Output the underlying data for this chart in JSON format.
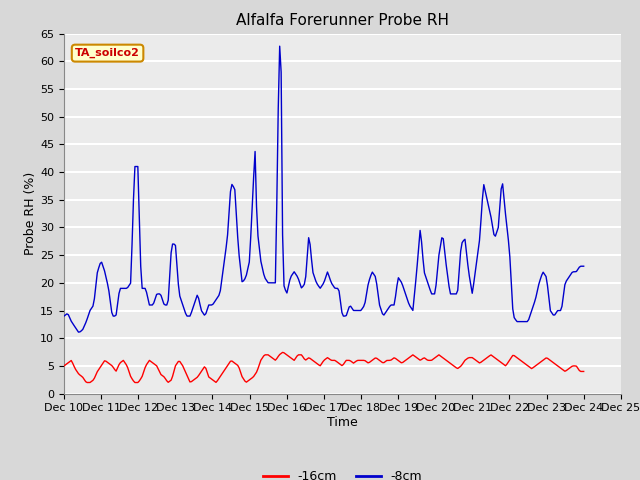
{
  "title": "Alfalfa Forerunner Probe RH",
  "xlabel": "Time",
  "ylabel": "Probe RH (%)",
  "ylim": [
    0,
    65
  ],
  "yticks": [
    0,
    5,
    10,
    15,
    20,
    25,
    30,
    35,
    40,
    45,
    50,
    55,
    60,
    65
  ],
  "x_labels": [
    "Dec 10",
    "Dec 11",
    "Dec 12",
    "Dec 13",
    "Dec 14",
    "Dec 15",
    "Dec 16",
    "Dec 17",
    "Dec 18",
    "Dec 19",
    "Dec 20",
    "Dec 21",
    "Dec 22",
    "Dec 23",
    "Dec 24",
    "Dec 25"
  ],
  "bg_color": "#d8d8d8",
  "plot_bg_color": "#ebebeb",
  "grid_color": "#ffffff",
  "annotation_text": "TA_soilco2",
  "annotation_bg": "#ffffcc",
  "annotation_border": "#cc8800",
  "annotation_text_color": "#cc0000",
  "legend_label_red": "-16cm",
  "legend_label_blue": "-8cm",
  "red_color": "#ff0000",
  "blue_color": "#0000cc",
  "title_fontsize": 11,
  "axis_label_fontsize": 9,
  "tick_fontsize": 8,
  "blue_keypoints": [
    [
      0,
      14
    ],
    [
      0.1,
      14.5
    ],
    [
      0.2,
      13
    ],
    [
      0.3,
      12
    ],
    [
      0.4,
      11
    ],
    [
      0.5,
      11.5
    ],
    [
      0.6,
      13
    ],
    [
      0.7,
      15
    ],
    [
      0.8,
      16
    ],
    [
      0.9,
      22
    ],
    [
      1.0,
      24
    ],
    [
      1.1,
      22
    ],
    [
      1.2,
      19
    ],
    [
      1.3,
      14
    ],
    [
      1.4,
      14
    ],
    [
      1.5,
      19
    ],
    [
      1.6,
      19
    ],
    [
      1.7,
      19
    ],
    [
      1.8,
      20
    ],
    [
      1.9,
      41
    ],
    [
      2.0,
      41
    ],
    [
      2.05,
      25
    ],
    [
      2.1,
      19
    ],
    [
      2.2,
      19
    ],
    [
      2.3,
      16
    ],
    [
      2.4,
      16
    ],
    [
      2.5,
      18
    ],
    [
      2.6,
      18
    ],
    [
      2.7,
      16
    ],
    [
      2.8,
      16
    ],
    [
      2.9,
      27
    ],
    [
      3.0,
      27
    ],
    [
      3.1,
      18
    ],
    [
      3.2,
      16
    ],
    [
      3.3,
      14
    ],
    [
      3.4,
      14
    ],
    [
      3.5,
      16
    ],
    [
      3.6,
      18
    ],
    [
      3.7,
      15
    ],
    [
      3.8,
      14
    ],
    [
      3.9,
      16
    ],
    [
      4.0,
      16
    ],
    [
      4.2,
      18
    ],
    [
      4.4,
      28
    ],
    [
      4.5,
      38
    ],
    [
      4.6,
      37
    ],
    [
      4.7,
      26
    ],
    [
      4.8,
      20
    ],
    [
      4.9,
      21
    ],
    [
      5.0,
      24
    ],
    [
      5.1,
      38
    ],
    [
      5.15,
      44
    ],
    [
      5.2,
      30
    ],
    [
      5.3,
      24
    ],
    [
      5.4,
      21
    ],
    [
      5.5,
      20
    ],
    [
      5.7,
      20
    ],
    [
      5.8,
      64
    ],
    [
      5.85,
      58
    ],
    [
      5.9,
      20
    ],
    [
      6.0,
      18
    ],
    [
      6.1,
      21
    ],
    [
      6.2,
      22
    ],
    [
      6.3,
      21
    ],
    [
      6.4,
      19
    ],
    [
      6.5,
      20
    ],
    [
      6.6,
      29
    ],
    [
      6.7,
      22
    ],
    [
      6.8,
      20
    ],
    [
      6.9,
      19
    ],
    [
      7.0,
      20
    ],
    [
      7.1,
      22
    ],
    [
      7.2,
      20
    ],
    [
      7.3,
      19
    ],
    [
      7.4,
      19
    ],
    [
      7.5,
      14
    ],
    [
      7.6,
      14
    ],
    [
      7.7,
      16
    ],
    [
      7.8,
      15
    ],
    [
      7.9,
      15
    ],
    [
      8.0,
      15
    ],
    [
      8.1,
      16
    ],
    [
      8.2,
      20
    ],
    [
      8.3,
      22
    ],
    [
      8.4,
      21
    ],
    [
      8.5,
      16
    ],
    [
      8.6,
      14
    ],
    [
      8.7,
      15
    ],
    [
      8.8,
      16
    ],
    [
      8.9,
      16
    ],
    [
      9.0,
      21
    ],
    [
      9.1,
      20
    ],
    [
      9.2,
      18
    ],
    [
      9.3,
      16
    ],
    [
      9.4,
      15
    ],
    [
      9.5,
      22
    ],
    [
      9.6,
      30
    ],
    [
      9.7,
      22
    ],
    [
      9.8,
      20
    ],
    [
      9.9,
      18
    ],
    [
      10.0,
      18
    ],
    [
      10.1,
      25
    ],
    [
      10.2,
      29
    ],
    [
      10.3,
      23
    ],
    [
      10.4,
      18
    ],
    [
      10.5,
      18
    ],
    [
      10.6,
      18
    ],
    [
      10.7,
      27
    ],
    [
      10.8,
      28
    ],
    [
      10.9,
      22
    ],
    [
      11.0,
      18
    ],
    [
      11.1,
      23
    ],
    [
      11.2,
      28
    ],
    [
      11.3,
      38
    ],
    [
      11.4,
      35
    ],
    [
      11.5,
      32
    ],
    [
      11.6,
      28
    ],
    [
      11.7,
      30
    ],
    [
      11.8,
      39
    ],
    [
      11.9,
      32
    ],
    [
      12.0,
      26
    ],
    [
      12.1,
      14
    ],
    [
      12.2,
      13
    ],
    [
      12.3,
      13
    ],
    [
      12.5,
      13
    ],
    [
      12.6,
      15
    ],
    [
      12.7,
      17
    ],
    [
      12.8,
      20
    ],
    [
      12.9,
      22
    ],
    [
      13.0,
      21
    ],
    [
      13.1,
      15
    ],
    [
      13.2,
      14
    ],
    [
      13.3,
      15
    ],
    [
      13.4,
      15
    ],
    [
      13.5,
      20
    ],
    [
      13.6,
      21
    ],
    [
      13.7,
      22
    ],
    [
      13.8,
      22
    ],
    [
      13.9,
      23
    ],
    [
      14.0,
      23
    ]
  ],
  "red_keypoints": [
    [
      0,
      5
    ],
    [
      0.1,
      5.5
    ],
    [
      0.2,
      6
    ],
    [
      0.3,
      4.5
    ],
    [
      0.4,
      3.5
    ],
    [
      0.5,
      3
    ],
    [
      0.6,
      2
    ],
    [
      0.7,
      2
    ],
    [
      0.8,
      2.5
    ],
    [
      0.9,
      4
    ],
    [
      1.0,
      5
    ],
    [
      1.1,
      6
    ],
    [
      1.2,
      5.5
    ],
    [
      1.3,
      5
    ],
    [
      1.4,
      4
    ],
    [
      1.5,
      5.5
    ],
    [
      1.6,
      6
    ],
    [
      1.7,
      5
    ],
    [
      1.8,
      3
    ],
    [
      1.9,
      2
    ],
    [
      2.0,
      2
    ],
    [
      2.1,
      3
    ],
    [
      2.2,
      5
    ],
    [
      2.3,
      6
    ],
    [
      2.4,
      5.5
    ],
    [
      2.5,
      5
    ],
    [
      2.6,
      3.5
    ],
    [
      2.7,
      3
    ],
    [
      2.8,
      2
    ],
    [
      2.9,
      2.5
    ],
    [
      3.0,
      5
    ],
    [
      3.1,
      6
    ],
    [
      3.2,
      5
    ],
    [
      3.3,
      3.5
    ],
    [
      3.4,
      2
    ],
    [
      3.5,
      2.5
    ],
    [
      3.6,
      3
    ],
    [
      3.7,
      4
    ],
    [
      3.8,
      5
    ],
    [
      3.9,
      3
    ],
    [
      4.0,
      2.5
    ],
    [
      4.1,
      2
    ],
    [
      4.2,
      3
    ],
    [
      4.3,
      4
    ],
    [
      4.4,
      5
    ],
    [
      4.5,
      6
    ],
    [
      4.6,
      5.5
    ],
    [
      4.7,
      5
    ],
    [
      4.8,
      3
    ],
    [
      4.9,
      2
    ],
    [
      5.0,
      2.5
    ],
    [
      5.1,
      3
    ],
    [
      5.2,
      4
    ],
    [
      5.3,
      6
    ],
    [
      5.4,
      7
    ],
    [
      5.5,
      7
    ],
    [
      5.6,
      6.5
    ],
    [
      5.7,
      6
    ],
    [
      5.8,
      7
    ],
    [
      5.9,
      7.5
    ],
    [
      6.0,
      7
    ],
    [
      6.1,
      6.5
    ],
    [
      6.2,
      6
    ],
    [
      6.3,
      7
    ],
    [
      6.4,
      7
    ],
    [
      6.5,
      6
    ],
    [
      6.6,
      6.5
    ],
    [
      6.7,
      6
    ],
    [
      6.8,
      5.5
    ],
    [
      6.9,
      5
    ],
    [
      7.0,
      6
    ],
    [
      7.1,
      6.5
    ],
    [
      7.2,
      6
    ],
    [
      7.3,
      6
    ],
    [
      7.4,
      5.5
    ],
    [
      7.5,
      5
    ],
    [
      7.6,
      6
    ],
    [
      7.7,
      6
    ],
    [
      7.8,
      5.5
    ],
    [
      7.9,
      6
    ],
    [
      8.0,
      6
    ],
    [
      8.1,
      6
    ],
    [
      8.2,
      5.5
    ],
    [
      8.3,
      6
    ],
    [
      8.4,
      6.5
    ],
    [
      8.5,
      6
    ],
    [
      8.6,
      5.5
    ],
    [
      8.7,
      6
    ],
    [
      8.8,
      6
    ],
    [
      8.9,
      6.5
    ],
    [
      9.0,
      6
    ],
    [
      9.1,
      5.5
    ],
    [
      9.2,
      6
    ],
    [
      9.3,
      6.5
    ],
    [
      9.4,
      7
    ],
    [
      9.5,
      6.5
    ],
    [
      9.6,
      6
    ],
    [
      9.7,
      6.5
    ],
    [
      9.8,
      6
    ],
    [
      9.9,
      6
    ],
    [
      10.0,
      6.5
    ],
    [
      10.1,
      7
    ],
    [
      10.2,
      6.5
    ],
    [
      10.3,
      6
    ],
    [
      10.4,
      5.5
    ],
    [
      10.5,
      5
    ],
    [
      10.6,
      4.5
    ],
    [
      10.7,
      5
    ],
    [
      10.8,
      6
    ],
    [
      10.9,
      6.5
    ],
    [
      11.0,
      6.5
    ],
    [
      11.1,
      6
    ],
    [
      11.2,
      5.5
    ],
    [
      11.3,
      6
    ],
    [
      11.4,
      6.5
    ],
    [
      11.5,
      7
    ],
    [
      11.6,
      6.5
    ],
    [
      11.7,
      6
    ],
    [
      11.8,
      5.5
    ],
    [
      11.9,
      5
    ],
    [
      12.0,
      6
    ],
    [
      12.1,
      7
    ],
    [
      12.2,
      6.5
    ],
    [
      12.3,
      6
    ],
    [
      12.4,
      5.5
    ],
    [
      12.5,
      5
    ],
    [
      12.6,
      4.5
    ],
    [
      12.7,
      5
    ],
    [
      12.8,
      5.5
    ],
    [
      12.9,
      6
    ],
    [
      13.0,
      6.5
    ],
    [
      13.1,
      6
    ],
    [
      13.2,
      5.5
    ],
    [
      13.3,
      5
    ],
    [
      13.4,
      4.5
    ],
    [
      13.5,
      4
    ],
    [
      13.6,
      4.5
    ],
    [
      13.7,
      5
    ],
    [
      13.8,
      5
    ],
    [
      13.9,
      4
    ],
    [
      14.0,
      4
    ]
  ]
}
